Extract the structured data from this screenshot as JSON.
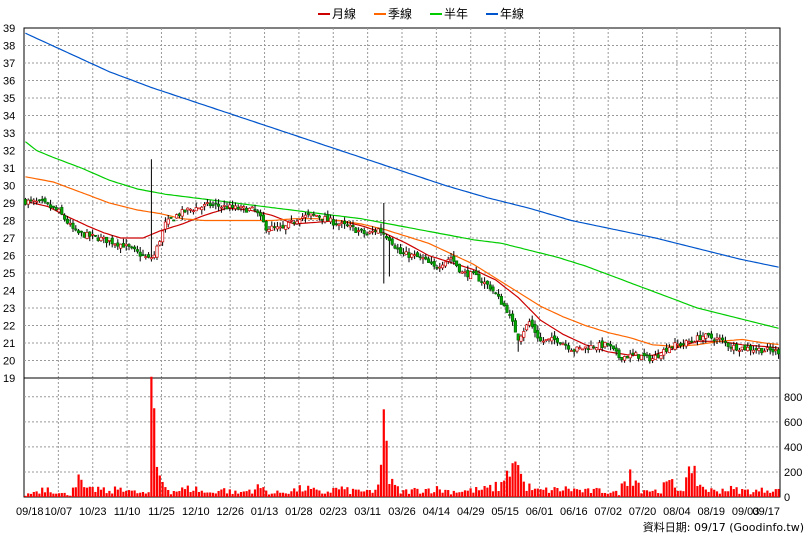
{
  "chart_data": {
    "type": "candlestick",
    "legend": [
      {
        "name": "月線",
        "color": "#cc0000"
      },
      {
        "name": "季線",
        "color": "#ff6600"
      },
      {
        "name": "半年",
        "color": "#00cc00"
      },
      {
        "name": "年線",
        "color": "#0055cc"
      }
    ],
    "legend_position": "top-center",
    "grid": true,
    "price_axis": {
      "position": "left",
      "min": 19,
      "max": 39,
      "ticks": [
        19,
        20,
        21,
        22,
        23,
        24,
        25,
        26,
        27,
        28,
        29,
        30,
        31,
        32,
        33,
        34,
        35,
        36,
        37,
        38,
        39
      ]
    },
    "volume_axis": {
      "position": "right",
      "min": 0,
      "max": 950,
      "ticks": [
        0,
        200,
        400,
        600,
        800
      ]
    },
    "x_tick_labels": [
      "09/18",
      "10/07",
      "10/23",
      "11/10",
      "11/25",
      "12/10",
      "12/26",
      "01/13",
      "01/28",
      "02/23",
      "03/11",
      "03/26",
      "04/14",
      "04/29",
      "05/15",
      "06/01",
      "06/16",
      "07/02",
      "07/20",
      "08/04",
      "08/19",
      "09/03",
      "09/17"
    ],
    "price_close_keypoints": [
      [
        0,
        29.1
      ],
      [
        6,
        29.0
      ],
      [
        12,
        28.5
      ],
      [
        18,
        27.3
      ],
      [
        26,
        27.0
      ],
      [
        35,
        26.6
      ],
      [
        44,
        25.8
      ],
      [
        46,
        26.0
      ],
      [
        50,
        27.8
      ],
      [
        54,
        28.3
      ],
      [
        58,
        28.6
      ],
      [
        66,
        28.9
      ],
      [
        75,
        28.7
      ],
      [
        82,
        28.6
      ],
      [
        86,
        27.6
      ],
      [
        92,
        27.5
      ],
      [
        98,
        28.2
      ],
      [
        104,
        28.3
      ],
      [
        110,
        27.9
      ],
      [
        116,
        27.6
      ],
      [
        122,
        27.2
      ],
      [
        126,
        27.5
      ],
      [
        130,
        27.0
      ],
      [
        134,
        26.1
      ],
      [
        138,
        26.0
      ],
      [
        142,
        25.8
      ],
      [
        146,
        25.3
      ],
      [
        152,
        25.9
      ],
      [
        156,
        25.0
      ],
      [
        160,
        24.9
      ],
      [
        166,
        24.2
      ],
      [
        172,
        22.9
      ],
      [
        176,
        21.3
      ],
      [
        180,
        22.2
      ],
      [
        184,
        21.1
      ],
      [
        190,
        21.2
      ],
      [
        196,
        20.6
      ],
      [
        202,
        20.8
      ],
      [
        208,
        20.9
      ],
      [
        212,
        20.2
      ],
      [
        218,
        20.3
      ],
      [
        224,
        20.1
      ],
      [
        230,
        20.8
      ],
      [
        236,
        21.0
      ],
      [
        242,
        21.4
      ],
      [
        248,
        21.2
      ],
      [
        252,
        20.8
      ],
      [
        258,
        20.7
      ],
      [
        264,
        20.6
      ],
      [
        270,
        20.5
      ]
    ],
    "volume_keypoints": [
      [
        0,
        15
      ],
      [
        5,
        55
      ],
      [
        8,
        80
      ],
      [
        12,
        28
      ],
      [
        16,
        20
      ],
      [
        18,
        150
      ],
      [
        22,
        50
      ],
      [
        26,
        65
      ],
      [
        30,
        35
      ],
      [
        35,
        85
      ],
      [
        38,
        40
      ],
      [
        44,
        25
      ],
      [
        45,
        960
      ],
      [
        47,
        240
      ],
      [
        49,
        120
      ],
      [
        52,
        45
      ],
      [
        60,
        70
      ],
      [
        65,
        30
      ],
      [
        70,
        60
      ],
      [
        76,
        30
      ],
      [
        80,
        55
      ],
      [
        84,
        75
      ],
      [
        88,
        28
      ],
      [
        94,
        45
      ],
      [
        100,
        70
      ],
      [
        106,
        30
      ],
      [
        112,
        70
      ],
      [
        116,
        45
      ],
      [
        120,
        55
      ],
      [
        124,
        30
      ],
      [
        126,
        75
      ],
      [
        128,
        700
      ],
      [
        130,
        120
      ],
      [
        134,
        40
      ],
      [
        140,
        55
      ],
      [
        146,
        65
      ],
      [
        152,
        45
      ],
      [
        158,
        50
      ],
      [
        164,
        60
      ],
      [
        170,
        90
      ],
      [
        172,
        210
      ],
      [
        174,
        270
      ],
      [
        176,
        255
      ],
      [
        178,
        100
      ],
      [
        182,
        50
      ],
      [
        188,
        55
      ],
      [
        194,
        65
      ],
      [
        200,
        45
      ],
      [
        206,
        50
      ],
      [
        212,
        30
      ],
      [
        216,
        220
      ],
      [
        220,
        65
      ],
      [
        226,
        45
      ],
      [
        230,
        110
      ],
      [
        234,
        60
      ],
      [
        238,
        190
      ],
      [
        242,
        75
      ],
      [
        246,
        45
      ],
      [
        250,
        65
      ],
      [
        256,
        50
      ],
      [
        262,
        45
      ],
      [
        266,
        70
      ],
      [
        270,
        40
      ]
    ],
    "moving_average_keypoints": {
      "月線": [
        [
          0,
          29.1
        ],
        [
          8,
          28.8
        ],
        [
          14,
          28.3
        ],
        [
          22,
          27.7
        ],
        [
          28,
          27.3
        ],
        [
          34,
          27.0
        ],
        [
          42,
          27.0
        ],
        [
          48,
          27.4
        ],
        [
          56,
          27.8
        ],
        [
          64,
          28.3
        ],
        [
          72,
          28.7
        ],
        [
          80,
          28.6
        ],
        [
          88,
          28.3
        ],
        [
          96,
          27.8
        ],
        [
          104,
          27.9
        ],
        [
          112,
          28.0
        ],
        [
          120,
          27.7
        ],
        [
          128,
          27.3
        ],
        [
          136,
          26.7
        ],
        [
          144,
          26.0
        ],
        [
          152,
          25.6
        ],
        [
          160,
          25.2
        ],
        [
          168,
          24.6
        ],
        [
          176,
          23.6
        ],
        [
          184,
          22.3
        ],
        [
          192,
          21.5
        ],
        [
          200,
          20.9
        ],
        [
          208,
          20.5
        ],
        [
          216,
          20.3
        ],
        [
          224,
          20.3
        ],
        [
          232,
          20.7
        ],
        [
          240,
          21.1
        ],
        [
          248,
          21.1
        ],
        [
          256,
          20.9
        ],
        [
          264,
          20.8
        ],
        [
          270,
          20.7
        ]
      ],
      "季線": [
        [
          0,
          30.5
        ],
        [
          10,
          30.2
        ],
        [
          20,
          29.6
        ],
        [
          30,
          29.0
        ],
        [
          40,
          28.6
        ],
        [
          48,
          28.4
        ],
        [
          56,
          28.1
        ],
        [
          64,
          28.0
        ],
        [
          72,
          28.0
        ],
        [
          80,
          28.0
        ],
        [
          88,
          28.0
        ],
        [
          96,
          28.1
        ],
        [
          104,
          28.1
        ],
        [
          112,
          28.0
        ],
        [
          120,
          27.8
        ],
        [
          128,
          27.5
        ],
        [
          136,
          27.1
        ],
        [
          144,
          26.7
        ],
        [
          152,
          26.1
        ],
        [
          160,
          25.5
        ],
        [
          168,
          24.7
        ],
        [
          176,
          23.9
        ],
        [
          184,
          23.1
        ],
        [
          192,
          22.5
        ],
        [
          200,
          22.0
        ],
        [
          208,
          21.6
        ],
        [
          216,
          21.3
        ],
        [
          224,
          20.9
        ],
        [
          232,
          20.8
        ],
        [
          240,
          20.9
        ],
        [
          248,
          21.1
        ],
        [
          256,
          21.2
        ],
        [
          264,
          21.0
        ],
        [
          270,
          20.9
        ]
      ],
      "半年": [
        [
          0,
          32.5
        ],
        [
          4,
          32.0
        ],
        [
          10,
          31.6
        ],
        [
          20,
          31.0
        ],
        [
          30,
          30.3
        ],
        [
          40,
          29.8
        ],
        [
          50,
          29.5
        ],
        [
          60,
          29.3
        ],
        [
          70,
          29.1
        ],
        [
          80,
          28.9
        ],
        [
          90,
          28.7
        ],
        [
          100,
          28.5
        ],
        [
          110,
          28.3
        ],
        [
          120,
          28.1
        ],
        [
          130,
          27.8
        ],
        [
          140,
          27.5
        ],
        [
          150,
          27.2
        ],
        [
          160,
          26.9
        ],
        [
          170,
          26.7
        ],
        [
          180,
          26.3
        ],
        [
          190,
          25.9
        ],
        [
          200,
          25.4
        ],
        [
          210,
          24.8
        ],
        [
          220,
          24.2
        ],
        [
          230,
          23.6
        ],
        [
          240,
          23.0
        ],
        [
          250,
          22.6
        ],
        [
          260,
          22.2
        ],
        [
          270,
          21.8
        ]
      ],
      "年線": [
        [
          0,
          38.7
        ],
        [
          15,
          37.6
        ],
        [
          30,
          36.5
        ],
        [
          45,
          35.6
        ],
        [
          60,
          34.8
        ],
        [
          75,
          34.0
        ],
        [
          90,
          33.2
        ],
        [
          105,
          32.4
        ],
        [
          120,
          31.6
        ],
        [
          135,
          30.8
        ],
        [
          150,
          30.0
        ],
        [
          165,
          29.3
        ],
        [
          180,
          28.7
        ],
        [
          195,
          28.0
        ],
        [
          210,
          27.5
        ],
        [
          225,
          27.0
        ],
        [
          240,
          26.4
        ],
        [
          255,
          25.8
        ],
        [
          270,
          25.3
        ],
        [
          285,
          24.7
        ]
      ]
    },
    "series_length": 270
  },
  "source_label": "資料日期: 09/17  (Goodinfo.tw)"
}
